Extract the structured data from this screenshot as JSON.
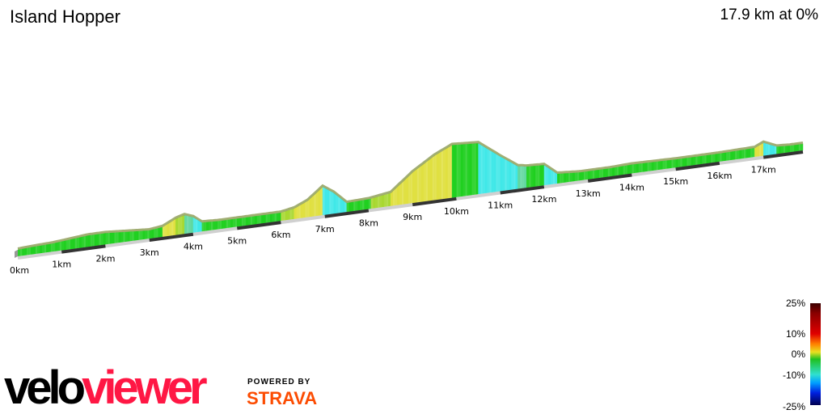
{
  "header": {
    "title": "Island Hopper",
    "summary": "17.9 km at 0%"
  },
  "chart_data": {
    "type": "area",
    "title": "Island Hopper",
    "x_unit": "km",
    "total_distance_km": 17.9,
    "x_ticks": [
      "0km",
      "1km",
      "2km",
      "3km",
      "4km",
      "5km",
      "6km",
      "7km",
      "8km",
      "9km",
      "10km",
      "11km",
      "12km",
      "13km",
      "14km",
      "15km",
      "16km",
      "17km"
    ],
    "profile_relative_elevation": [
      [
        0,
        8
      ],
      [
        0.3,
        9
      ],
      [
        0.8,
        10
      ],
      [
        1.2,
        12
      ],
      [
        1.6,
        14
      ],
      [
        2.0,
        14
      ],
      [
        2.5,
        12
      ],
      [
        3.0,
        10
      ],
      [
        3.3,
        12
      ],
      [
        3.6,
        20
      ],
      [
        3.8,
        23
      ],
      [
        4.0,
        19
      ],
      [
        4.2,
        11
      ],
      [
        4.6,
        10
      ],
      [
        5.0,
        10
      ],
      [
        5.5,
        10
      ],
      [
        6.0,
        10
      ],
      [
        6.3,
        13
      ],
      [
        6.6,
        20
      ],
      [
        6.95,
        35
      ],
      [
        7.2,
        26
      ],
      [
        7.5,
        11
      ],
      [
        8.0,
        12
      ],
      [
        8.5,
        16
      ],
      [
        9.0,
        38
      ],
      [
        9.5,
        55
      ],
      [
        9.9,
        65
      ],
      [
        10.5,
        63
      ],
      [
        11.0,
        43
      ],
      [
        11.4,
        28
      ],
      [
        11.6,
        26
      ],
      [
        12.0,
        25
      ],
      [
        12.3,
        12
      ],
      [
        12.8,
        10
      ],
      [
        13.5,
        10
      ],
      [
        14.0,
        11
      ],
      [
        15.0,
        10
      ],
      [
        16.0,
        10
      ],
      [
        16.8,
        11
      ],
      [
        17.0,
        16
      ],
      [
        17.3,
        9
      ],
      [
        17.6,
        8
      ],
      [
        17.9,
        8
      ]
    ],
    "gradient_scale": {
      "labels": [
        "25%",
        "10%",
        "0%",
        "-10%",
        "-25%"
      ]
    },
    "colors": {
      "flat": "#20d020",
      "climb": "#e8e840",
      "descent": "#40e0e0",
      "edge": "#8a9a50"
    }
  },
  "branding": {
    "logo_part1": "velo",
    "logo_part2": "viewer",
    "powered_by": "POWERED BY",
    "strava": "STRAVA"
  }
}
